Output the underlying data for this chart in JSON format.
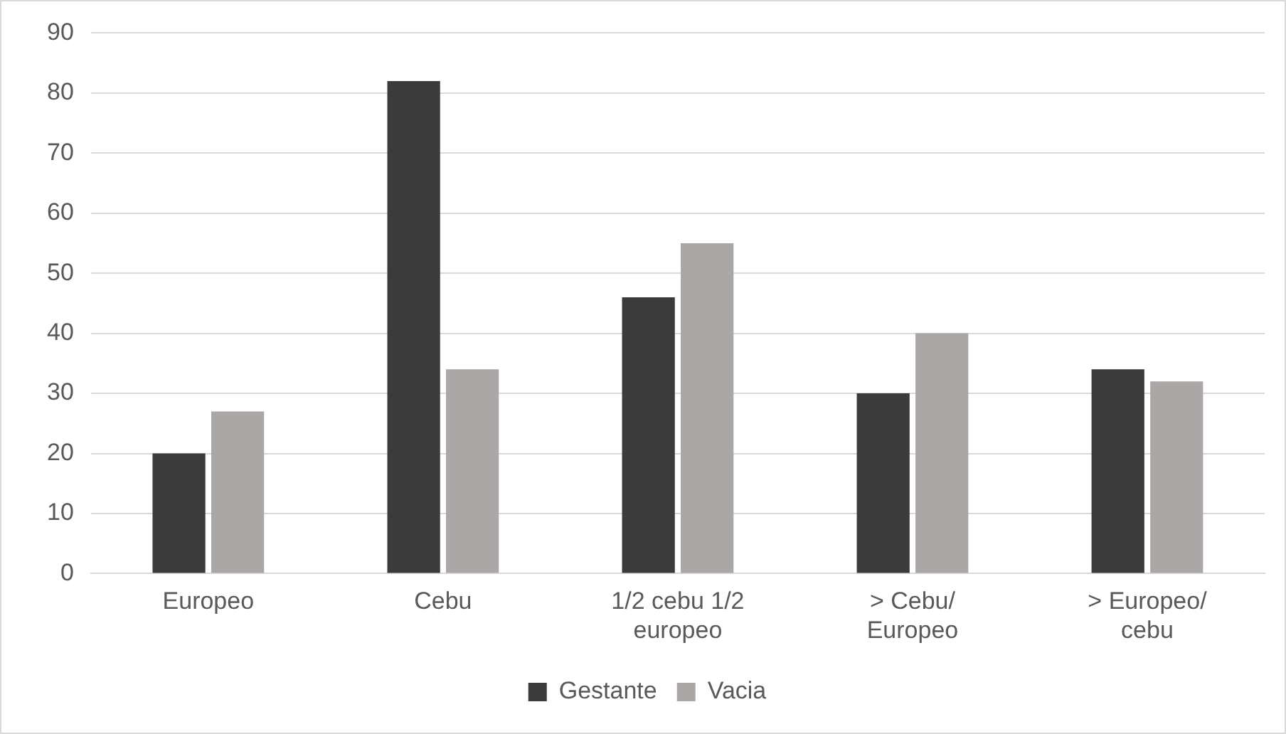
{
  "chart_data": {
    "type": "bar",
    "categories": [
      "Europeo",
      "Cebu",
      "1/2 cebu 1/2 europeo",
      "> Cebu/ Europeo",
      "> Europeo/ cebu"
    ],
    "series": [
      {
        "name": "Gestante",
        "color": "#3b3b3b",
        "values": [
          20,
          82,
          46,
          30,
          34
        ]
      },
      {
        "name": "Vacia",
        "color": "#aba7a7",
        "values": [
          27,
          34,
          55,
          40,
          32
        ]
      }
    ],
    "ylim": [
      0,
      90
    ],
    "yticks": [
      0,
      10,
      20,
      30,
      40,
      50,
      60,
      70,
      80,
      90
    ],
    "grid": "y",
    "legend": "bottom"
  }
}
